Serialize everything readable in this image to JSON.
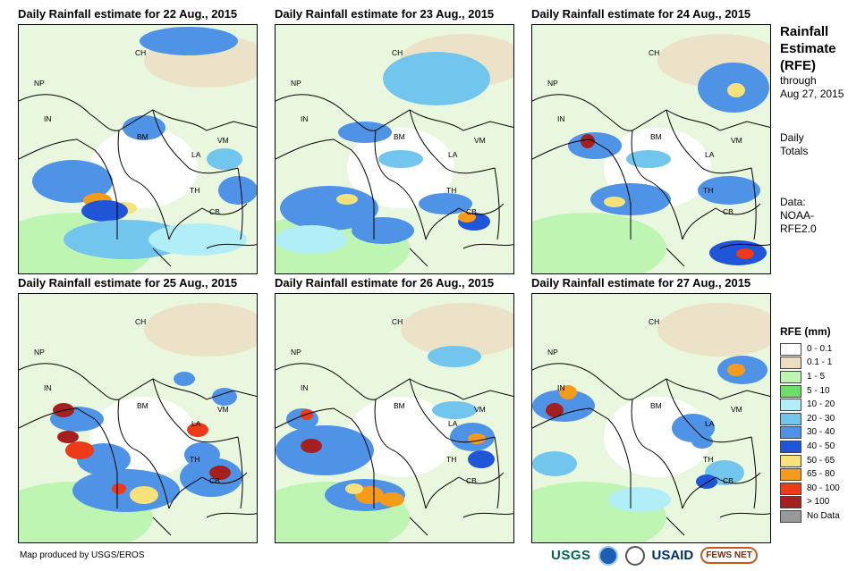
{
  "panels": [
    {
      "title": "Daily Rainfall estimate for 22 Aug., 2015"
    },
    {
      "title": "Daily Rainfall estimate for 23 Aug., 2015"
    },
    {
      "title": "Daily Rainfall estimate for 24 Aug., 2015"
    },
    {
      "title": "Daily Rainfall estimate for 25 Aug., 2015"
    },
    {
      "title": "Daily Rainfall estimate for 26 Aug., 2015"
    },
    {
      "title": "Daily Rainfall estimate for 27 Aug., 2015"
    }
  ],
  "country_labels": [
    "CH",
    "NP",
    "IN",
    "BM",
    "LA",
    "VM",
    "TH",
    "CB"
  ],
  "sidebar": {
    "title1": "Rainfall",
    "title2": "Estimate",
    "title3": "(RFE)",
    "through": "through",
    "date": "Aug 27, 2015",
    "daily1": "Daily",
    "daily2": "Totals",
    "data_label": "Data:",
    "data_src1": "NOAA-",
    "data_src2": "RFE2.0"
  },
  "legend": {
    "title": "RFE (mm)",
    "items": [
      {
        "label": "0 - 0.1",
        "color": "#ffffff"
      },
      {
        "label": "0.1 - 1",
        "color": "#ecdcc1"
      },
      {
        "label": "1 - 5",
        "color": "#bff5b3"
      },
      {
        "label": "5 - 10",
        "color": "#6cdf6a"
      },
      {
        "label": "10 - 20",
        "color": "#b2eef7"
      },
      {
        "label": "20 - 30",
        "color": "#72c6ee"
      },
      {
        "label": "30 - 40",
        "color": "#4f93e7"
      },
      {
        "label": "40 - 50",
        "color": "#1f55d6"
      },
      {
        "label": "50 - 65",
        "color": "#f6e27a"
      },
      {
        "label": "65 - 80",
        "color": "#f59b1c"
      },
      {
        "label": "80 - 100",
        "color": "#ef3a18"
      },
      {
        "label": "> 100",
        "color": "#a42020"
      },
      {
        "label": "No Data",
        "color": "#999999"
      }
    ]
  },
  "credit": "Map produced by USGS/EROS",
  "logos": {
    "usgs": "USGS",
    "usaid": "USAID",
    "fews": "FEWS NET"
  },
  "panel_rain": [
    [
      [
        60,
        175,
        45,
        24,
        30
      ],
      [
        88,
        196,
        16,
        8,
        65
      ],
      [
        118,
        205,
        14,
        7,
        55
      ],
      [
        96,
        208,
        26,
        12,
        40
      ],
      [
        190,
        18,
        55,
        16,
        30
      ],
      [
        140,
        115,
        24,
        14,
        30
      ],
      [
        245,
        185,
        22,
        16,
        30
      ],
      [
        230,
        150,
        20,
        12,
        20
      ],
      [
        120,
        240,
        70,
        22,
        20
      ],
      [
        200,
        240,
        55,
        18,
        10
      ]
    ],
    [
      [
        180,
        60,
        60,
        30,
        20
      ],
      [
        60,
        205,
        55,
        25,
        30
      ],
      [
        80,
        195,
        12,
        6,
        55
      ],
      [
        120,
        230,
        35,
        15,
        30
      ],
      [
        190,
        200,
        30,
        12,
        30
      ],
      [
        222,
        220,
        18,
        10,
        40
      ],
      [
        214,
        215,
        10,
        6,
        65
      ],
      [
        100,
        120,
        30,
        12,
        30
      ],
      [
        140,
        150,
        25,
        10,
        20
      ],
      [
        40,
        240,
        40,
        16,
        10
      ]
    ],
    [
      [
        70,
        135,
        30,
        15,
        30
      ],
      [
        62,
        130,
        8,
        8,
        100
      ],
      [
        225,
        70,
        40,
        28,
        30
      ],
      [
        228,
        73,
        10,
        8,
        55
      ],
      [
        220,
        185,
        35,
        16,
        30
      ],
      [
        230,
        255,
        32,
        14,
        40
      ],
      [
        238,
        256,
        10,
        6,
        80
      ],
      [
        110,
        195,
        45,
        18,
        30
      ],
      [
        92,
        198,
        12,
        6,
        50
      ],
      [
        130,
        150,
        25,
        10,
        20
      ]
    ],
    [
      [
        65,
        140,
        30,
        14,
        30
      ],
      [
        50,
        130,
        12,
        8,
        100
      ],
      [
        95,
        185,
        30,
        18,
        30
      ],
      [
        68,
        175,
        16,
        10,
        80
      ],
      [
        55,
        160,
        12,
        7,
        100
      ],
      [
        120,
        220,
        60,
        24,
        30
      ],
      [
        140,
        225,
        16,
        10,
        55
      ],
      [
        112,
        218,
        8,
        6,
        80
      ],
      [
        215,
        205,
        35,
        22,
        30
      ],
      [
        225,
        200,
        12,
        8,
        100
      ],
      [
        205,
        180,
        20,
        14,
        30
      ],
      [
        200,
        152,
        12,
        8,
        80
      ],
      [
        185,
        95,
        12,
        8,
        30
      ],
      [
        230,
        115,
        14,
        10,
        30
      ]
    ],
    [
      [
        55,
        175,
        55,
        28,
        30
      ],
      [
        40,
        170,
        12,
        8,
        100
      ],
      [
        30,
        140,
        18,
        12,
        30
      ],
      [
        35,
        135,
        7,
        6,
        80
      ],
      [
        100,
        225,
        45,
        18,
        30
      ],
      [
        105,
        225,
        16,
        10,
        65
      ],
      [
        88,
        218,
        10,
        6,
        50
      ],
      [
        130,
        230,
        14,
        8,
        65
      ],
      [
        220,
        160,
        25,
        16,
        30
      ],
      [
        225,
        162,
        10,
        6,
        65
      ],
      [
        230,
        185,
        15,
        10,
        40
      ],
      [
        200,
        70,
        30,
        12,
        20
      ],
      [
        200,
        130,
        25,
        10,
        20
      ]
    ],
    [
      [
        35,
        125,
        35,
        18,
        30
      ],
      [
        25,
        130,
        10,
        8,
        100
      ],
      [
        40,
        110,
        10,
        8,
        65
      ],
      [
        235,
        85,
        28,
        16,
        30
      ],
      [
        228,
        85,
        10,
        7,
        65
      ],
      [
        180,
        150,
        24,
        16,
        30
      ],
      [
        190,
        165,
        12,
        8,
        30
      ],
      [
        25,
        190,
        25,
        14,
        20
      ],
      [
        215,
        200,
        22,
        14,
        20
      ],
      [
        195,
        210,
        12,
        8,
        40
      ],
      [
        120,
        230,
        35,
        14,
        10
      ]
    ]
  ]
}
